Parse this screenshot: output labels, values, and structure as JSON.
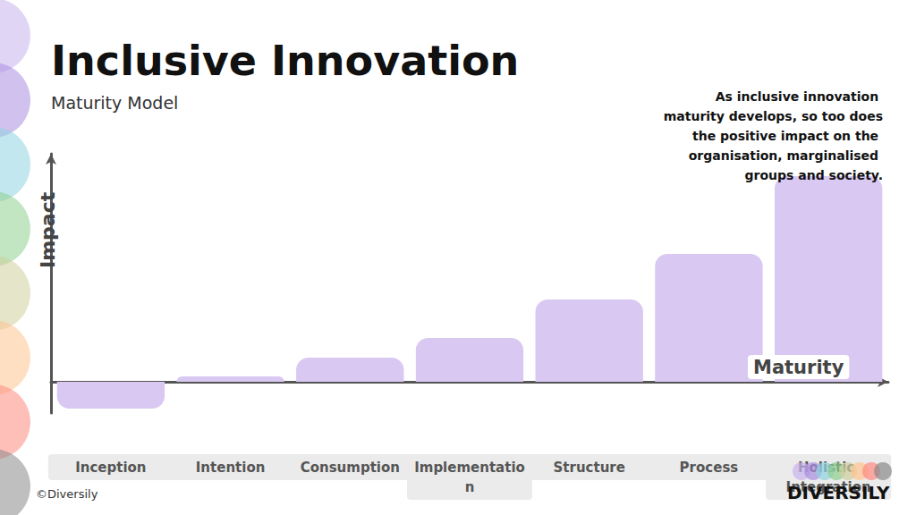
{
  "chart_data": {
    "type": "bar",
    "title": "Inclusive Innovation",
    "subtitle": "Maturity Model",
    "xlabel": "Maturity",
    "ylabel": "Impact",
    "annotation": "As inclusive innovation maturity develops, so too does the positive impact on the organisation, marginalised groups and society.",
    "footer": "©Diversily",
    "logo": "DIVERSILY",
    "categories": [
      "Inception",
      "Intention",
      "Consumption",
      "Implementation",
      "Structure",
      "Process",
      "Holistic Integration"
    ],
    "values": [
      -30,
      6,
      27,
      49,
      92,
      143,
      230
    ],
    "color": "#d9c8f2",
    "ylim": [
      -35,
      255
    ],
    "grid": false,
    "tick_labels": "x"
  }
}
